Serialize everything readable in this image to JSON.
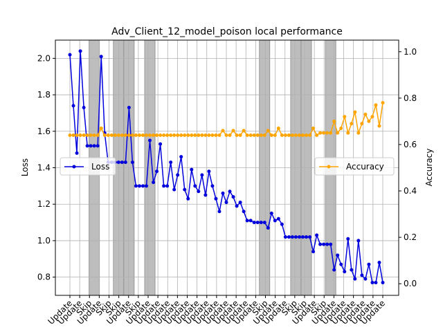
{
  "chart_data": {
    "type": "line",
    "title": "Adv_Client_12_model_poison local performance",
    "ylabel_left": "Loss",
    "ylabel_right": "Accuracy",
    "ylim_left": [
      0.7,
      2.1
    ],
    "ylim_right": [
      -0.05,
      1.05
    ],
    "yticks_left": [
      "0.8",
      "1.0",
      "1.2",
      "1.4",
      "1.6",
      "1.8",
      "2.0"
    ],
    "yticks_right": [
      "0.0",
      "0.2",
      "0.4",
      "0.6",
      "0.8",
      "1.0"
    ],
    "grid": true,
    "skip_rounds": [
      6,
      13,
      16,
      22,
      55,
      64,
      67,
      74
    ],
    "x_tick_labels": [
      "Update",
      "Update",
      "Skip",
      "Update",
      "Skip",
      "Skip",
      "Update",
      "Skip",
      "Update",
      "Update",
      "Update",
      "Update",
      "Update",
      "Update",
      "Update",
      "Update",
      "Update",
      "Update",
      "Update",
      "Update",
      "Skip",
      "Update",
      "Update",
      "Skip",
      "Skip",
      "Update",
      "Skip",
      "Update",
      "Update",
      "Update",
      "Update",
      "Update",
      "Update"
    ],
    "series": [
      {
        "name": "Loss",
        "color": "#0000dd",
        "axis": "left",
        "values": [
          2.02,
          1.74,
          1.48,
          2.04,
          1.73,
          1.52,
          1.52,
          1.52,
          1.52,
          2.01,
          1.59,
          1.43,
          1.43,
          1.43,
          1.43,
          1.43,
          1.43,
          1.73,
          1.43,
          1.3,
          1.3,
          1.3,
          1.3,
          1.55,
          1.32,
          1.38,
          1.53,
          1.3,
          1.3,
          1.43,
          1.28,
          1.36,
          1.46,
          1.28,
          1.23,
          1.39,
          1.3,
          1.27,
          1.36,
          1.25,
          1.38,
          1.3,
          1.23,
          1.16,
          1.26,
          1.21,
          1.27,
          1.24,
          1.19,
          1.21,
          1.16,
          1.11,
          1.11,
          1.1,
          1.1,
          1.1,
          1.1,
          1.07,
          1.15,
          1.11,
          1.12,
          1.09,
          1.02,
          1.02,
          1.02,
          1.02,
          1.02,
          1.02,
          1.02,
          1.02,
          0.94,
          1.03,
          0.98,
          0.98,
          0.98,
          0.98,
          0.84,
          0.92,
          0.87,
          0.83,
          1.01,
          0.84,
          0.79,
          1.0,
          0.81,
          0.79,
          0.87,
          0.77,
          0.77,
          0.88,
          0.77
        ]
      },
      {
        "name": "Accuracy",
        "color": "#ffa500",
        "axis": "right",
        "values": [
          0.64,
          0.64,
          0.64,
          0.64,
          0.64,
          0.64,
          0.64,
          0.64,
          0.64,
          0.67,
          0.64,
          0.64,
          0.64,
          0.64,
          0.64,
          0.64,
          0.64,
          0.64,
          0.64,
          0.64,
          0.64,
          0.64,
          0.64,
          0.64,
          0.64,
          0.64,
          0.64,
          0.64,
          0.64,
          0.64,
          0.64,
          0.64,
          0.64,
          0.64,
          0.64,
          0.64,
          0.64,
          0.64,
          0.64,
          0.64,
          0.64,
          0.64,
          0.64,
          0.64,
          0.66,
          0.64,
          0.64,
          0.66,
          0.64,
          0.64,
          0.66,
          0.64,
          0.64,
          0.64,
          0.64,
          0.64,
          0.64,
          0.66,
          0.64,
          0.64,
          0.67,
          0.64,
          0.64,
          0.64,
          0.64,
          0.64,
          0.64,
          0.64,
          0.64,
          0.64,
          0.67,
          0.64,
          0.65,
          0.65,
          0.65,
          0.65,
          0.7,
          0.65,
          0.67,
          0.72,
          0.65,
          0.69,
          0.74,
          0.65,
          0.69,
          0.73,
          0.7,
          0.72,
          0.77,
          0.68,
          0.78
        ]
      }
    ],
    "legend": [
      {
        "label": "Loss",
        "placement": "center-left"
      },
      {
        "label": "Accuracy",
        "placement": "center-right"
      }
    ]
  }
}
